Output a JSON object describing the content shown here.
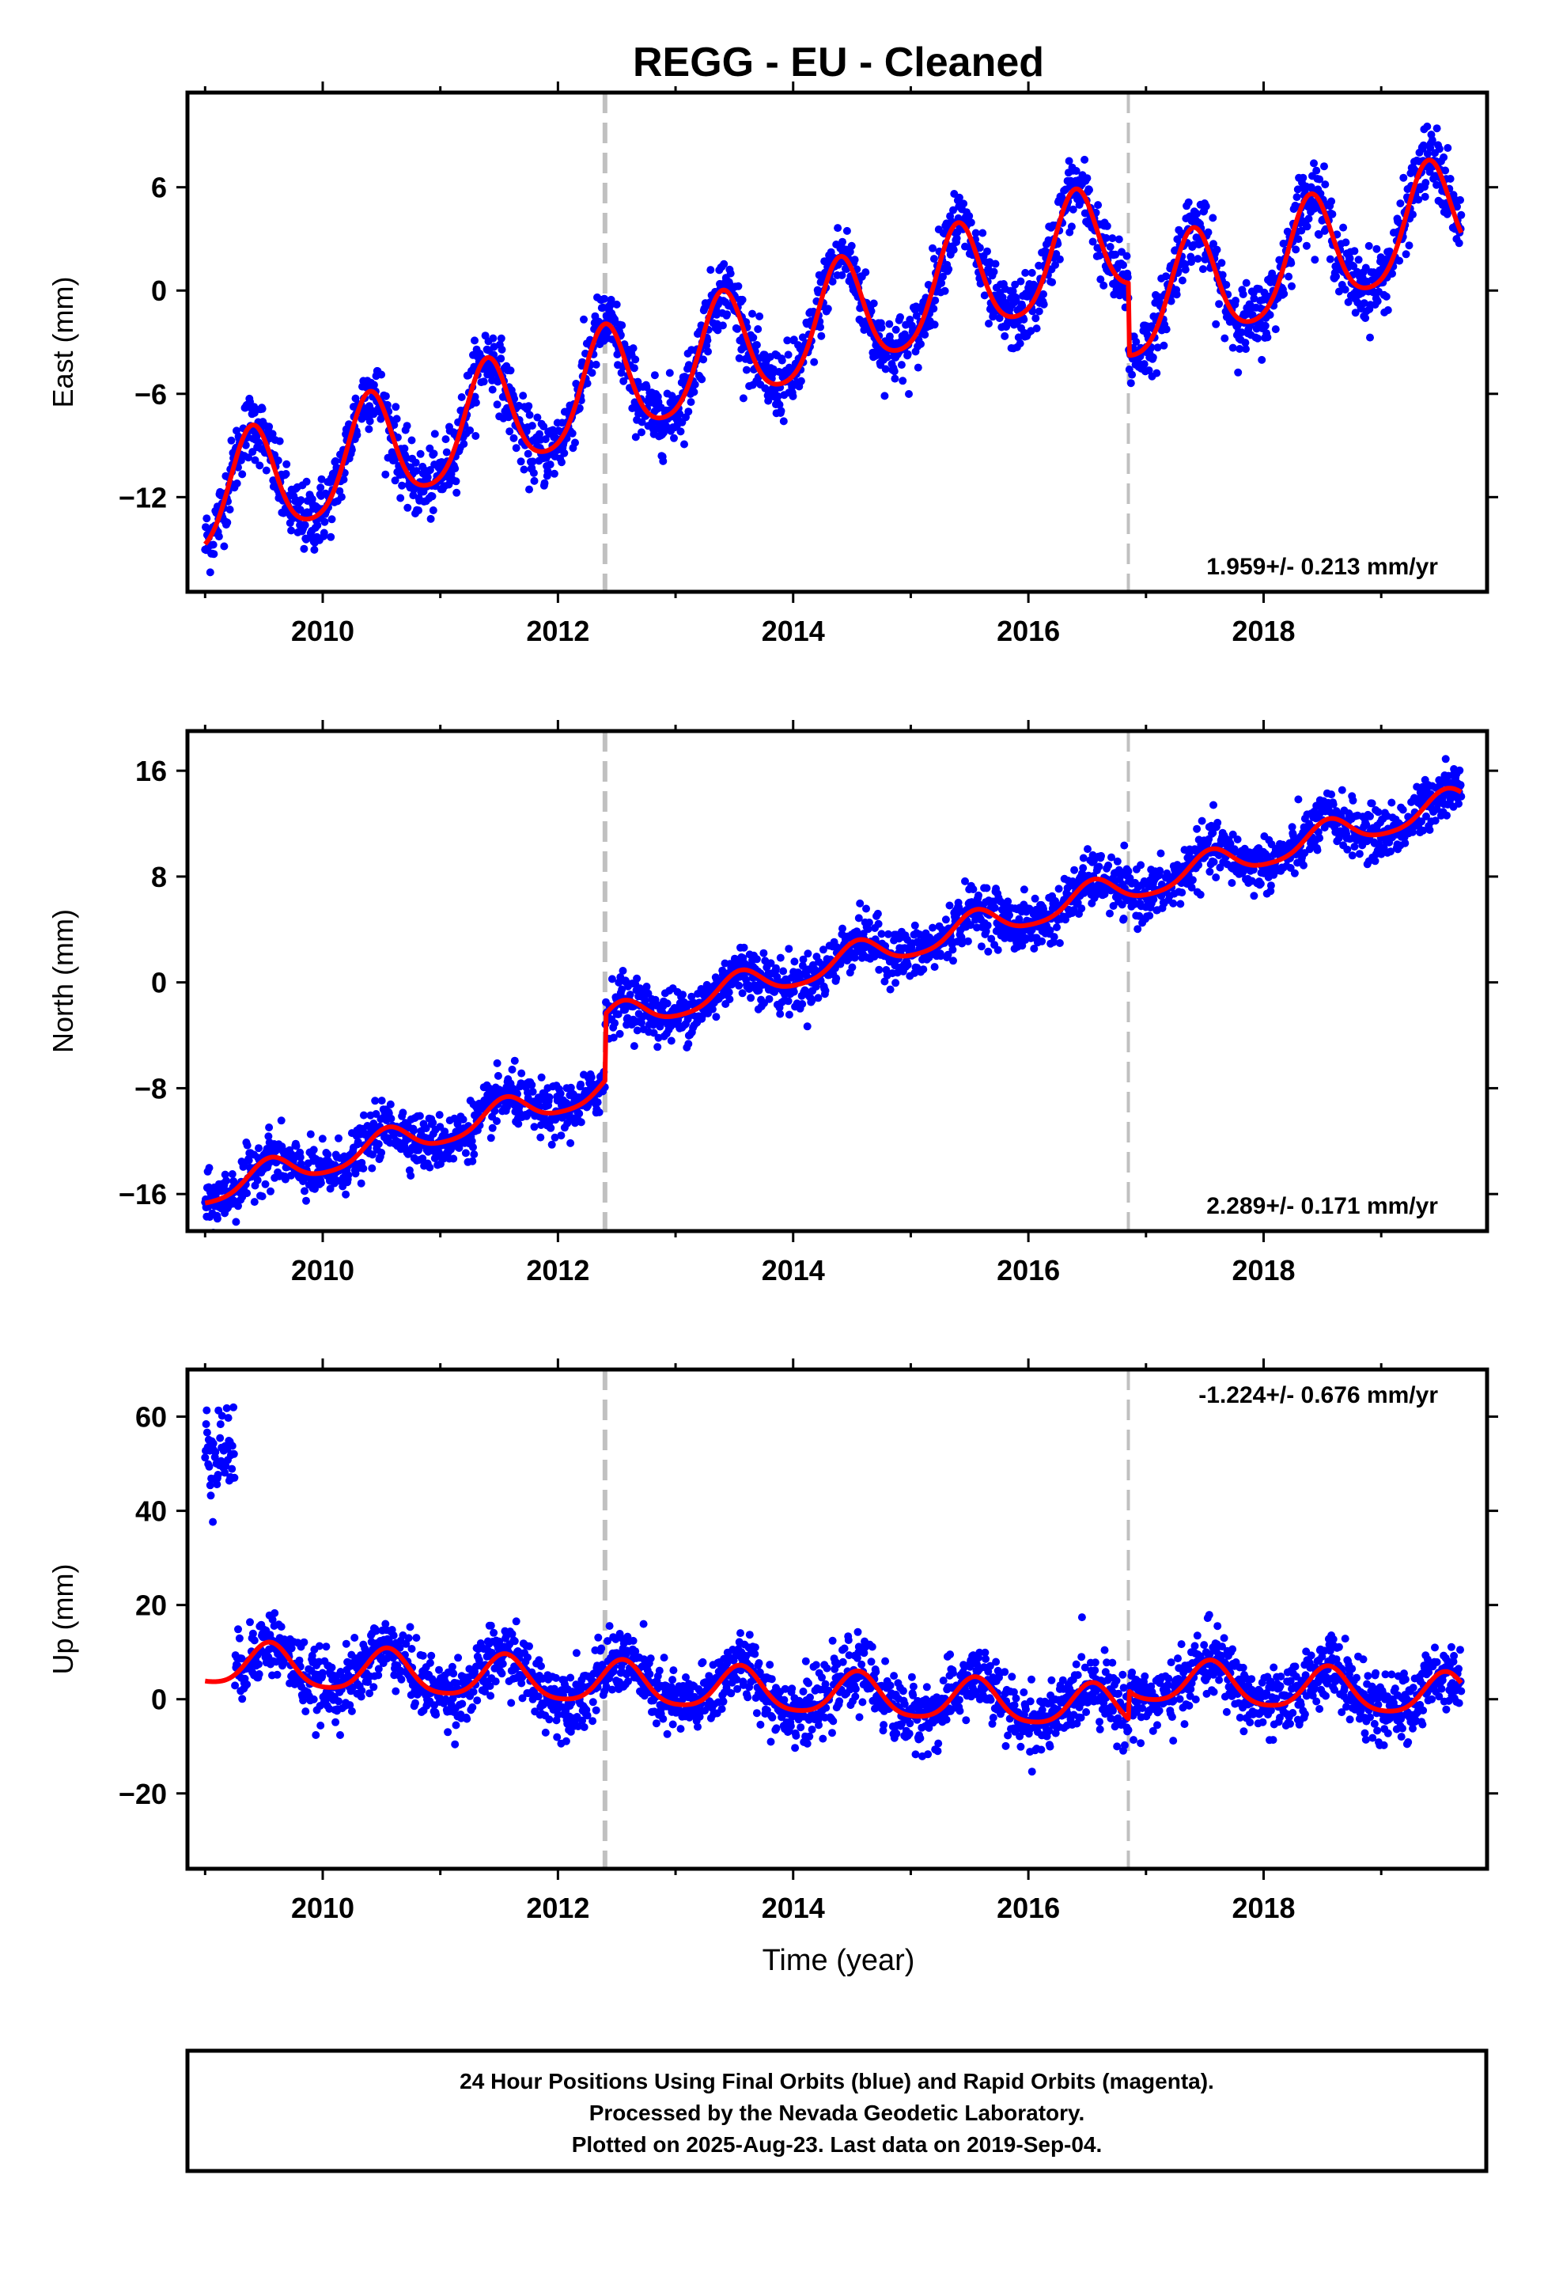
{
  "title": "REGG  - EU - Cleaned",
  "xlabel": "Time (year)",
  "footer": {
    "line1": "24 Hour Positions Using Final Orbits (blue) and Rapid Orbits (magenta).",
    "line2": "Processed by the Nevada Geodetic Laboratory.",
    "line3": "Plotted on 2025-Aug-23. Last data on 2019-Sep-04."
  },
  "colors": {
    "observations": "#0000ff",
    "model": "#ff0000",
    "event_lines": "#c0c0c0",
    "frame": "#000000"
  },
  "chart_data": [
    {
      "type": "scatter",
      "name": "east",
      "ylabel": "East (mm)",
      "xlim": [
        2008.85,
        2019.9
      ],
      "ylim": [
        -17.5,
        11.5
      ],
      "xticks": [
        2010,
        2012,
        2014,
        2016,
        2018
      ],
      "yticks": [
        -12,
        -6,
        0,
        6
      ],
      "rate_label": "1.959+/- 0.213 mm/yr",
      "rate_position": "bottom-right",
      "event_lines": [
        2012.4,
        2016.85
      ],
      "model": {
        "t0": 2009.0,
        "y0": -12.3,
        "rate": 1.959,
        "annual_amp": 3.2,
        "annual_peak": 2009.4,
        "semiannual_amp": 0.5,
        "offsets": [
          {
            "t": 2016.85,
            "dy": -4.2
          }
        ],
        "end": 2019.68
      },
      "scatter_noise_mm": 1.0
    },
    {
      "type": "scatter",
      "name": "north",
      "ylabel": "North (mm)",
      "xlim": [
        2008.85,
        2019.9
      ],
      "ylim": [
        -18.8,
        19.0
      ],
      "xticks": [
        2010,
        2012,
        2014,
        2016,
        2018
      ],
      "yticks": [
        -16,
        -8,
        0,
        8,
        16
      ],
      "rate_label": "2.289+/- 0.171 mm/yr",
      "rate_position": "bottom-right",
      "event_lines": [
        2012.4,
        2016.85
      ],
      "model": {
        "t0": 2009.0,
        "y0": -15.8,
        "rate": 2.289,
        "annual_amp": 1.1,
        "annual_peak": 2009.55,
        "semiannual_amp": 0.2,
        "offsets": [
          {
            "t": 2012.4,
            "dy": 5.0
          }
        ],
        "end": 2019.68
      },
      "scatter_noise_mm": 1.0
    },
    {
      "type": "scatter",
      "name": "up",
      "ylabel": "Up (mm)",
      "xlim": [
        2008.85,
        2019.9
      ],
      "ylim": [
        -36,
        70
      ],
      "xticks": [
        2010,
        2012,
        2014,
        2016,
        2018
      ],
      "yticks": [
        -20,
        0,
        20,
        40,
        60
      ],
      "rate_label": "-1.224+/- 0.676 mm/yr",
      "rate_position": "top-right",
      "event_lines": [
        2012.4,
        2016.85
      ],
      "model": {
        "t0": 2009.0,
        "y0": 7.5,
        "rate": -1.224,
        "annual_amp": 4.5,
        "annual_peak": 2009.55,
        "semiannual_amp": 0.8,
        "offsets": [
          {
            "t": 2016.85,
            "dy": 6.0
          }
        ],
        "end": 2019.68
      },
      "scatter_noise_mm": 3.5,
      "outlier_cluster": {
        "t_start": 2009.0,
        "t_end": 2009.25,
        "y_mean": 53,
        "y_spread": 5
      }
    }
  ]
}
